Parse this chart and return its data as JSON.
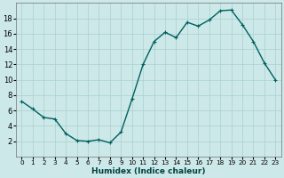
{
  "y_values": [
    7.2,
    6.2,
    5.1,
    4.9,
    3.0,
    2.1,
    2.0,
    2.2,
    1.8,
    3.2,
    7.5,
    12.0,
    15.0,
    16.2,
    15.5,
    17.5,
    17.0,
    17.8,
    19.0,
    19.1,
    17.2,
    15.0,
    12.2,
    10.0
  ],
  "xlim": [
    -0.5,
    23.5
  ],
  "ylim": [
    0,
    20
  ],
  "yticks": [
    2,
    4,
    6,
    8,
    10,
    12,
    14,
    16,
    18
  ],
  "xtick_labels": [
    "0",
    "1",
    "2",
    "3",
    "4",
    "5",
    "6",
    "7",
    "8",
    "9",
    "10",
    "11",
    "12",
    "13",
    "14",
    "15",
    "16",
    "17",
    "18",
    "19",
    "20",
    "21",
    "22",
    "23"
  ],
  "xlabel": "Humidex (Indice chaleur)",
  "line_color": "#006060",
  "bg_color": "#cce8e8",
  "grid_color": "#aad0d0",
  "marker_size": 3.5,
  "linewidth": 1.0,
  "xlabel_fontsize": 6.5,
  "xtick_fontsize": 5.2,
  "ytick_fontsize": 6.0
}
